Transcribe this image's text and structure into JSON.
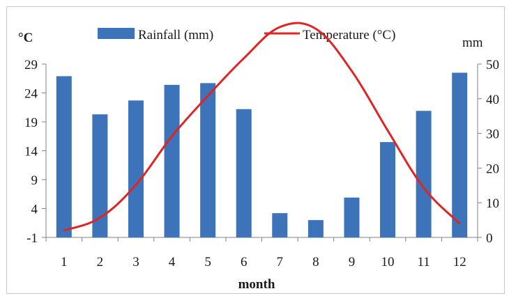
{
  "chart_data": {
    "type": "bar",
    "categories": [
      "1",
      "2",
      "3",
      "4",
      "5",
      "6",
      "7",
      "8",
      "9",
      "10",
      "11",
      "12"
    ],
    "series": [
      {
        "name": "Rainfall (mm)",
        "type": "bar",
        "axis": "right",
        "color": "#3d73b9",
        "values": [
          46.5,
          35.5,
          39.5,
          44,
          44.5,
          37,
          7,
          5,
          11.5,
          27.5,
          36.5,
          47.5
        ]
      },
      {
        "name": "Temperature (°C)",
        "type": "line",
        "axis": "left",
        "color": "#e02424",
        "values": [
          0.2,
          2.4,
          8.1,
          16.5,
          23.5,
          30,
          35.4,
          35.1,
          27.8,
          17.5,
          7.6,
          1.4
        ]
      }
    ],
    "y_left": {
      "label": "°C",
      "range": [
        -1,
        29
      ],
      "ticks": [
        "29",
        "24",
        "19",
        "14",
        "9",
        "4",
        "-1"
      ]
    },
    "y_right": {
      "label": "mm",
      "range": [
        0,
        50
      ],
      "ticks": [
        "50",
        "40",
        "30",
        "20",
        "10",
        "0"
      ]
    },
    "xlabel": "month",
    "grid": false,
    "legend": "top"
  }
}
